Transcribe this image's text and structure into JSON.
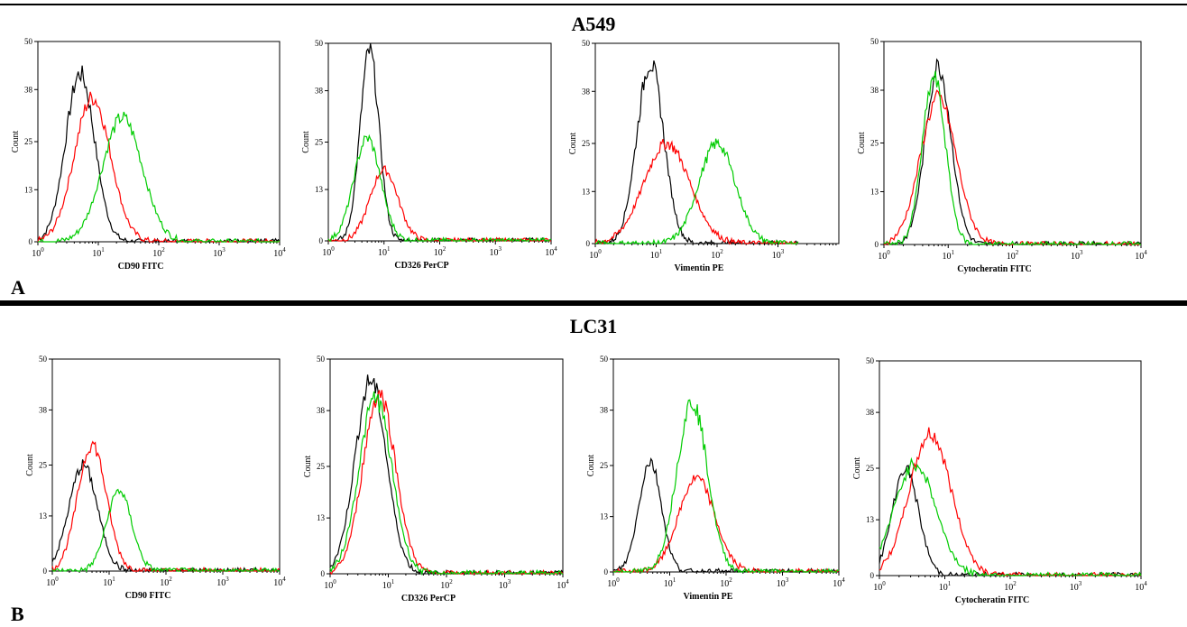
{
  "rows": [
    {
      "title": "A549",
      "letter": "A"
    },
    {
      "title": "LC31",
      "letter": "B"
    }
  ],
  "colors": {
    "black": "#000000",
    "red": "#ff0000",
    "green": "#00cc00"
  },
  "chart_data": [
    {
      "type": "line",
      "row": 0,
      "xlabel": "CD90 FITC",
      "ylabel": "Count",
      "xscale": "log",
      "xlim": [
        1,
        10000
      ],
      "ylim": [
        0,
        50
      ],
      "yticks": [
        0,
        13,
        25,
        38,
        50
      ],
      "xticks": [
        1,
        10,
        100,
        1000,
        10000
      ],
      "xticklabels": [
        "10^0",
        "10^1",
        "10^2",
        "10^3",
        "10^4"
      ],
      "series": [
        {
          "color": "black",
          "peak_x": 5,
          "peak_y": 42,
          "width": 0.24
        },
        {
          "color": "red",
          "peak_x": 8,
          "peak_y": 36,
          "width": 0.3
        },
        {
          "color": "green",
          "peak_x": 25,
          "peak_y": 31,
          "width": 0.33
        }
      ]
    },
    {
      "type": "line",
      "row": 0,
      "xlabel": "CD326 PerCP",
      "ylabel": "Count",
      "xscale": "log",
      "xlim": [
        1,
        10000
      ],
      "ylim": [
        0,
        50
      ],
      "yticks": [
        0,
        13,
        25,
        38,
        50
      ],
      "xticks": [
        1,
        10,
        100,
        1000,
        10000
      ],
      "xticklabels": [
        "10^0",
        "10^1",
        "10^2",
        "10^3",
        "10^4"
      ],
      "series": [
        {
          "color": "black",
          "peak_x": 5.5,
          "peak_y": 48,
          "width": 0.17
        },
        {
          "color": "red",
          "peak_x": 10,
          "peak_y": 18,
          "width": 0.25
        },
        {
          "color": "green",
          "peak_x": 5,
          "peak_y": 26,
          "width": 0.24
        }
      ]
    },
    {
      "type": "line",
      "row": 0,
      "xlabel": "Vimentin PE",
      "ylabel": "Count",
      "xscale": "log",
      "xlim": [
        1,
        10000
      ],
      "ylim": [
        0,
        50
      ],
      "yticks": [
        0,
        13,
        25,
        38,
        50
      ],
      "xticks": [
        1,
        10,
        100,
        1000
      ],
      "xticklabels": [
        "10^0",
        "10^1",
        "10^2",
        "10^3"
      ],
      "series": [
        {
          "color": "black",
          "peak_x": 8,
          "peak_y": 45,
          "width": 0.22
        },
        {
          "color": "red",
          "peak_x": 15,
          "peak_y": 25,
          "width": 0.38
        },
        {
          "color": "green",
          "peak_x": 100,
          "peak_y": 25,
          "width": 0.3
        }
      ]
    },
    {
      "type": "line",
      "row": 0,
      "xlabel": "Cytocheratin FITC",
      "ylabel": "Count",
      "xscale": "log",
      "xlim": [
        1,
        10000
      ],
      "ylim": [
        0,
        50
      ],
      "yticks": [
        0,
        13,
        25,
        38,
        50
      ],
      "xticks": [
        1,
        10,
        100,
        1000,
        10000
      ],
      "xticklabels": [
        "10^0",
        "10^1",
        "10^2",
        "10^3",
        "10^4"
      ],
      "series": [
        {
          "color": "black",
          "peak_x": 7,
          "peak_y": 44,
          "width": 0.2
        },
        {
          "color": "red",
          "peak_x": 7,
          "peak_y": 36,
          "width": 0.28
        },
        {
          "color": "green",
          "peak_x": 6,
          "peak_y": 41,
          "width": 0.18
        }
      ]
    },
    {
      "type": "line",
      "row": 1,
      "xlabel": "CD90 FITC",
      "ylabel": "Count",
      "xscale": "log",
      "xlim": [
        1,
        10000
      ],
      "ylim": [
        0,
        50
      ],
      "yticks": [
        0,
        13,
        25,
        38,
        50
      ],
      "xticks": [
        1,
        10,
        100,
        1000,
        10000
      ],
      "xticklabels": [
        "10^0",
        "10^1",
        "10^2",
        "10^3",
        "10^4"
      ],
      "series": [
        {
          "color": "black",
          "peak_x": 3.5,
          "peak_y": 25,
          "width": 0.25
        },
        {
          "color": "red",
          "peak_x": 5,
          "peak_y": 30,
          "width": 0.25
        },
        {
          "color": "green",
          "peak_x": 15,
          "peak_y": 19,
          "width": 0.22
        }
      ]
    },
    {
      "type": "line",
      "row": 1,
      "xlabel": "CD326 PerCP",
      "ylabel": "Count",
      "xscale": "log",
      "xlim": [
        1,
        10000
      ],
      "ylim": [
        0,
        50
      ],
      "yticks": [
        0,
        13,
        25,
        38,
        50
      ],
      "xticks": [
        1,
        10,
        100,
        1000,
        10000
      ],
      "xticklabels": [
        "10^0",
        "10^1",
        "10^2",
        "10^3",
        "10^4"
      ],
      "series": [
        {
          "color": "black",
          "peak_x": 5,
          "peak_y": 45,
          "width": 0.27
        },
        {
          "color": "red",
          "peak_x": 7,
          "peak_y": 42,
          "width": 0.28
        },
        {
          "color": "green",
          "peak_x": 6,
          "peak_y": 41,
          "width": 0.28
        }
      ]
    },
    {
      "type": "line",
      "row": 1,
      "xlabel": "Vimentin PE",
      "ylabel": "Count",
      "xscale": "log",
      "xlim": [
        1,
        10000
      ],
      "ylim": [
        0,
        50
      ],
      "yticks": [
        0,
        13,
        25,
        38,
        50
      ],
      "xticks": [
        1,
        10,
        100,
        1000,
        10000
      ],
      "xticklabels": [
        "10^0",
        "10^1",
        "10^2",
        "10^3",
        "10^4"
      ],
      "series": [
        {
          "color": "black",
          "peak_x": 4.5,
          "peak_y": 26,
          "width": 0.2
        },
        {
          "color": "red",
          "peak_x": 30,
          "peak_y": 22,
          "width": 0.32
        },
        {
          "color": "green",
          "peak_x": 25,
          "peak_y": 40,
          "width": 0.27
        }
      ]
    },
    {
      "type": "line",
      "row": 1,
      "xlabel": "Cytocheratin FITC",
      "ylabel": "Count",
      "xscale": "log",
      "xlim": [
        1,
        10000
      ],
      "ylim": [
        0,
        50
      ],
      "yticks": [
        0,
        13,
        25,
        38,
        50
      ],
      "xticks": [
        1,
        10,
        100,
        1000,
        10000
      ],
      "xticklabels": [
        "10^0",
        "10^1",
        "10^2",
        "10^3",
        "10^4"
      ],
      "series": [
        {
          "color": "black",
          "peak_x": 2.5,
          "peak_y": 25,
          "width": 0.2
        },
        {
          "color": "red",
          "peak_x": 6,
          "peak_y": 33,
          "width": 0.32
        },
        {
          "color": "green",
          "peak_x": 3.5,
          "peak_y": 26,
          "width": 0.32
        }
      ]
    }
  ]
}
